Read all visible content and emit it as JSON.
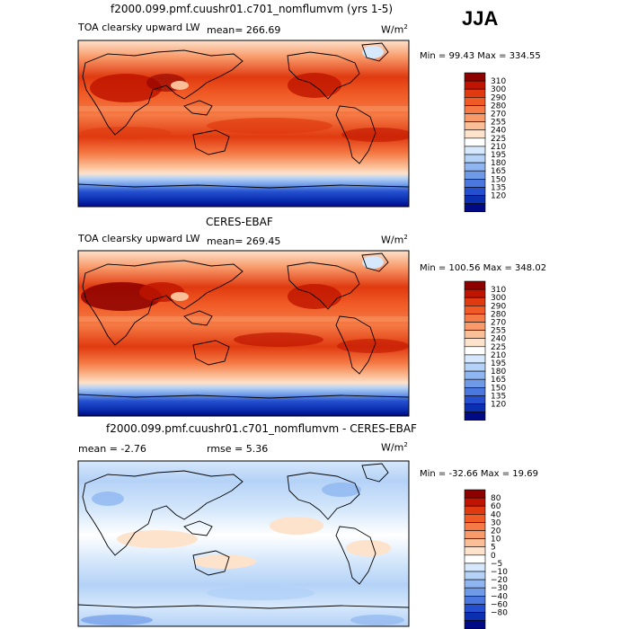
{
  "season": "JJA",
  "colorbars": {
    "abs_levels": [
      "310",
      "300",
      "290",
      "280",
      "270",
      "255",
      "240",
      "225",
      "210",
      "195",
      "180",
      "165",
      "150",
      "135",
      "120"
    ],
    "abs_colors": [
      "#8c0000",
      "#bf1500",
      "#e03a10",
      "#f05a25",
      "#f57a45",
      "#f89a6a",
      "#fbbf98",
      "#fde2cc",
      "#ffffff",
      "#d6e8fb",
      "#b4d2f7",
      "#8fb6f0",
      "#6e9ae8",
      "#4a78de",
      "#2450cf",
      "#0a2fb0",
      "#000a85"
    ],
    "diff_levels": [
      "80",
      "60",
      "40",
      "30",
      "20",
      "10",
      "5",
      "0",
      "−5",
      "−10",
      "−20",
      "−30",
      "−40",
      "−60",
      "−80"
    ],
    "diff_colors": [
      "#8c0000",
      "#bf1500",
      "#e03a10",
      "#f05a25",
      "#f57a45",
      "#f89a6a",
      "#fbbf98",
      "#fde2cc",
      "#ffffff",
      "#d6e8fb",
      "#b4d2f7",
      "#8fb6f0",
      "#6e9ae8",
      "#4a78de",
      "#2450cf",
      "#0a2fb0",
      "#000a85"
    ]
  },
  "chart_data": [
    {
      "type": "heatmap",
      "title": "f2000.099.pmf.cuushr01.c701_nomflumvm (yrs 1-5)",
      "label_left": "TOA clearsky upward LW",
      "mean": "mean=  266.69",
      "units": "W/m",
      "units_sup": "2",
      "minmax": "Min =   99.43 Max =  334.55"
    },
    {
      "type": "heatmap",
      "title": "CERES-EBAF",
      "label_left": "TOA clearsky upward LW",
      "mean": "mean=  269.45",
      "units": "W/m",
      "units_sup": "2",
      "minmax": "Min =  100.56 Max =  348.02"
    },
    {
      "type": "heatmap",
      "title": "f2000.099.pmf.cuushr01.c701_nomflumvm - CERES-EBAF",
      "mean": "mean =   -2.76",
      "rmse": "rmse =    5.36",
      "units": "W/m",
      "units_sup": "2",
      "minmax": "Min = -32.66 Max =   19.69"
    }
  ]
}
